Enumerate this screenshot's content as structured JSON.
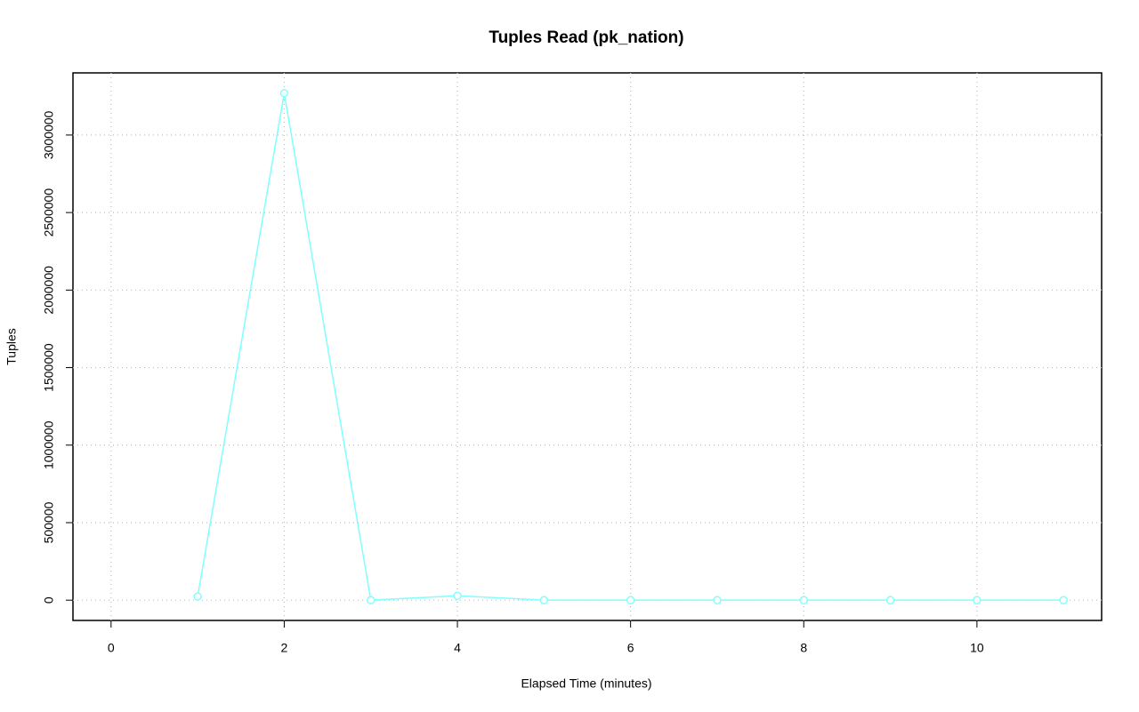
{
  "chart_data": {
    "type": "line",
    "title": "Tuples Read (pk_nation)",
    "xlabel": "Elapsed Time (minutes)",
    "ylabel": "Tuples",
    "x": [
      1,
      2,
      3,
      4,
      5,
      6,
      7,
      8,
      9,
      10,
      11
    ],
    "series": [
      {
        "name": "pk_nation",
        "color": "#80ffff",
        "values": [
          23000,
          3270000,
          0,
          28000,
          0,
          0,
          0,
          0,
          0,
          0,
          0
        ]
      }
    ],
    "xlim": [
      -0.44,
      11.44
    ],
    "xticks": [
      0,
      2,
      4,
      6,
      8,
      10
    ],
    "ylim": [
      -130800,
      3400800
    ],
    "yticks": [
      0,
      500000,
      1000000,
      1500000,
      2000000,
      2500000,
      3000000
    ],
    "grid": true
  }
}
